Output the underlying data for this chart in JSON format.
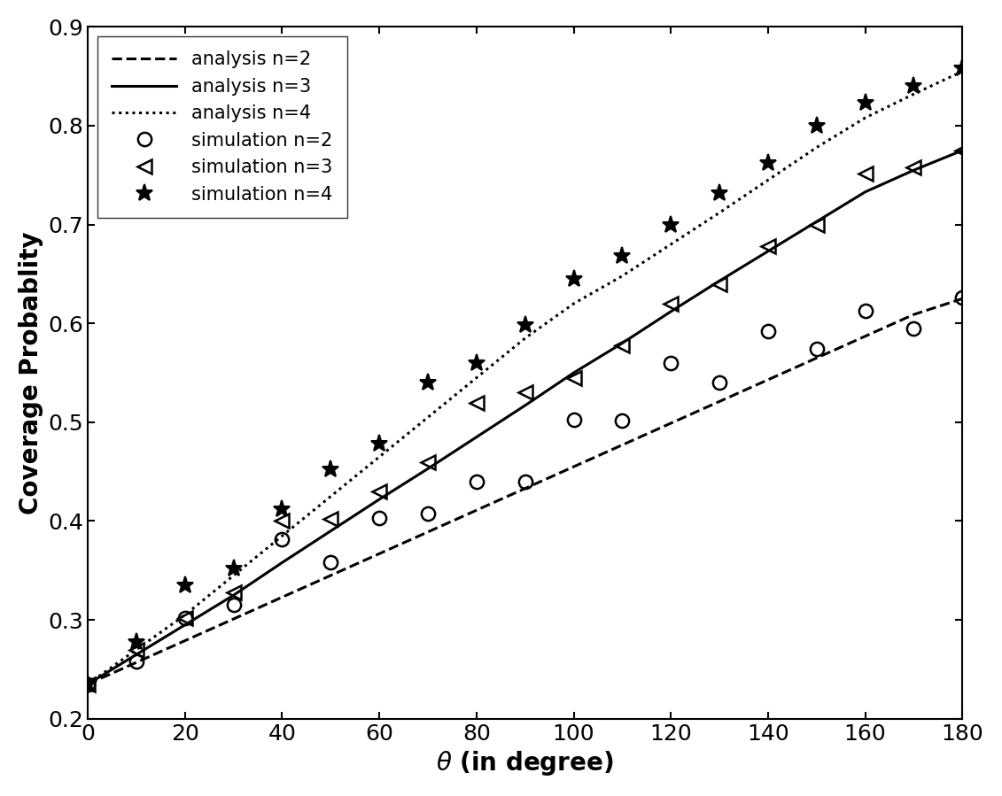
{
  "title": "",
  "xlabel": "$\\theta$ (in degree)",
  "ylabel": "Coverage Probablity",
  "xlim": [
    0,
    180
  ],
  "ylim": [
    0.2,
    0.9
  ],
  "xticks": [
    0,
    20,
    40,
    60,
    80,
    100,
    120,
    140,
    160,
    180
  ],
  "yticks": [
    0.2,
    0.3,
    0.4,
    0.5,
    0.6,
    0.7,
    0.8,
    0.9
  ],
  "theta": [
    0,
    10,
    20,
    30,
    40,
    50,
    60,
    70,
    80,
    90,
    100,
    110,
    120,
    130,
    140,
    150,
    160,
    170,
    180
  ],
  "n2_y": [
    0.235,
    0.257,
    0.279,
    0.301,
    0.323,
    0.345,
    0.367,
    0.389,
    0.411,
    0.433,
    0.455,
    0.477,
    0.499,
    0.521,
    0.543,
    0.565,
    0.587,
    0.609,
    0.625
  ],
  "n3_y": [
    0.235,
    0.265,
    0.295,
    0.325,
    0.358,
    0.39,
    0.422,
    0.453,
    0.485,
    0.517,
    0.55,
    0.58,
    0.612,
    0.643,
    0.673,
    0.703,
    0.733,
    0.755,
    0.775
  ],
  "n4_y": [
    0.235,
    0.27,
    0.305,
    0.345,
    0.385,
    0.425,
    0.465,
    0.505,
    0.545,
    0.585,
    0.62,
    0.648,
    0.68,
    0.712,
    0.745,
    0.778,
    0.808,
    0.832,
    0.855
  ],
  "sim_theta": [
    0,
    10,
    20,
    30,
    40,
    50,
    60,
    70,
    80,
    90,
    100,
    110,
    120,
    130,
    140,
    150,
    160,
    170,
    180
  ],
  "sim_n2_y": [
    0.235,
    0.258,
    0.302,
    0.315,
    0.382,
    0.358,
    0.403,
    0.408,
    0.44,
    0.44,
    0.503,
    0.502,
    0.56,
    0.54,
    0.592,
    0.574,
    0.613,
    0.595,
    0.626
  ],
  "sim_n3_y": [
    0.235,
    0.27,
    0.302,
    0.328,
    0.4,
    0.402,
    0.43,
    0.46,
    0.52,
    0.53,
    0.545,
    0.578,
    0.62,
    0.64,
    0.678,
    0.7,
    0.752,
    0.758,
    0.775
  ],
  "sim_n4_y": [
    0.235,
    0.278,
    0.335,
    0.352,
    0.412,
    0.452,
    0.478,
    0.54,
    0.56,
    0.598,
    0.645,
    0.668,
    0.7,
    0.732,
    0.762,
    0.8,
    0.823,
    0.84,
    0.858
  ],
  "line_color": "#000000",
  "background_color": "#ffffff",
  "legend_labels": [
    "analysis n=2",
    "analysis n=3",
    "analysis n=4",
    "simulation n=2",
    "simulation n=3",
    "simulation n=4"
  ],
  "fontsize": 20,
  "legend_fontsize": 15,
  "tick_fontsize": 18,
  "linewidth": 2.2
}
